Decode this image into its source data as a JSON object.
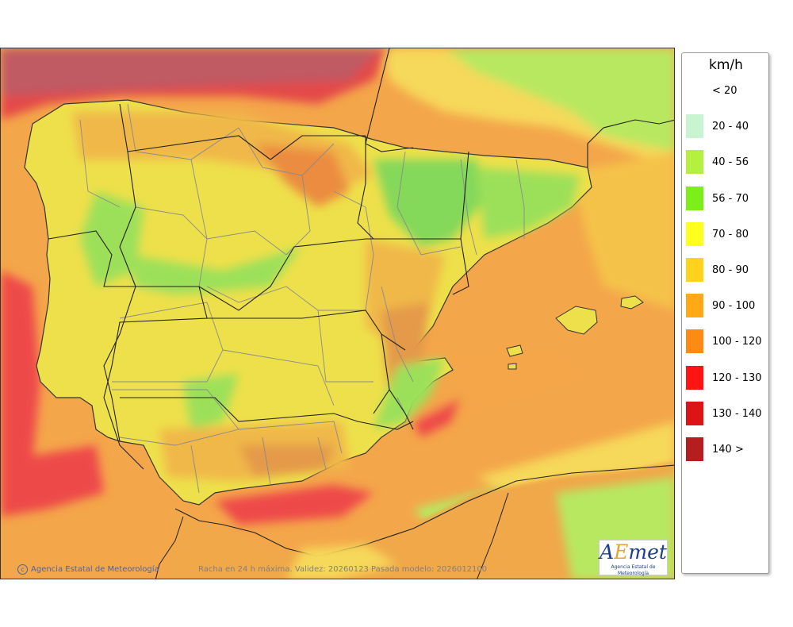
{
  "map": {
    "credit": "Agencia Estatal de Meteorología",
    "caption": "Racha en 24 h máxima. Validez: 20260123 Pasada modelo: 2026012100",
    "logo": {
      "mark_a": "A",
      "mark_e": "E",
      "mark_rest": "met",
      "tagline": "Agencia Estatal de Meteorología"
    }
  },
  "legend": {
    "unit": "km/h",
    "items": [
      {
        "label": "< 20",
        "color": ""
      },
      {
        "label": "20 - 40",
        "color": "#c8f5d0"
      },
      {
        "label": "40 - 56",
        "color": "#b4f040"
      },
      {
        "label": "56 - 70",
        "color": "#7cee1a"
      },
      {
        "label": "70 - 80",
        "color": "#ffff1e"
      },
      {
        "label": "80 - 90",
        "color": "#ffd21e"
      },
      {
        "label": "90 - 100",
        "color": "#ffaa14"
      },
      {
        "label": "100 - 120",
        "color": "#ff8a14"
      },
      {
        "label": "120 - 130",
        "color": "#ff1414"
      },
      {
        "label": "130 - 140",
        "color": "#dc1414"
      },
      {
        "label": "140 >",
        "color": "#b41e1e"
      }
    ]
  }
}
